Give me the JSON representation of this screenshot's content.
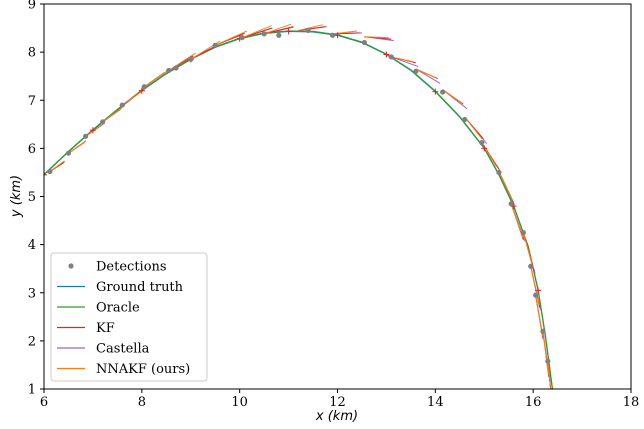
{
  "chart_data": {
    "type": "line",
    "xlabel": "x (km)",
    "ylabel": "y (km)",
    "xlim": [
      6,
      18
    ],
    "ylim": [
      1,
      9
    ],
    "xticks": [
      "6",
      "8",
      "10",
      "12",
      "14",
      "16",
      "18"
    ],
    "yticks": [
      "1",
      "2",
      "3",
      "4",
      "5",
      "6",
      "7",
      "8",
      "9"
    ],
    "grid": false,
    "legend_position": "lower-left",
    "colors": {
      "detections": "#808080",
      "ground_truth": "#1f77b4",
      "oracle": "#2ca02c",
      "kf": "#d62728",
      "castella": "#9467bd",
      "nnakf": "#ff7f0e"
    },
    "legend": [
      {
        "label": "Detections",
        "key": "detections",
        "kind": "marker"
      },
      {
        "label": "Ground truth",
        "key": "ground_truth",
        "kind": "line"
      },
      {
        "label": "Oracle",
        "key": "oracle",
        "kind": "line"
      },
      {
        "label": "KF",
        "key": "kf",
        "kind": "line"
      },
      {
        "label": "Castella",
        "key": "castella",
        "kind": "line"
      },
      {
        "label": "NNAKF (ours)",
        "key": "nnakf",
        "kind": "line"
      }
    ],
    "series": [
      {
        "name": "Ground truth",
        "key": "ground_truth",
        "x": [
          6.0,
          6.5,
          7.0,
          7.5,
          8.0,
          8.5,
          9.0,
          9.5,
          10.0,
          10.5,
          11.0,
          11.5,
          12.0,
          12.5,
          13.0,
          13.5,
          14.0,
          14.5,
          15.0,
          15.3,
          15.6,
          15.9,
          16.1,
          16.25,
          16.4
        ],
        "y": [
          5.45,
          5.93,
          6.38,
          6.8,
          7.2,
          7.55,
          7.85,
          8.1,
          8.28,
          8.39,
          8.43,
          8.42,
          8.35,
          8.2,
          7.95,
          7.62,
          7.18,
          6.65,
          6.0,
          5.45,
          4.8,
          3.95,
          3.05,
          2.1,
          0.95
        ]
      },
      {
        "name": "Oracle",
        "key": "oracle",
        "x": [
          6.0,
          6.5,
          7.0,
          7.5,
          8.0,
          8.5,
          9.0,
          9.5,
          10.0,
          10.5,
          11.0,
          11.5,
          12.0,
          12.5,
          13.0,
          13.5,
          14.0,
          14.5,
          15.0,
          15.3,
          15.6,
          15.9,
          16.1,
          16.25,
          16.4
        ],
        "y": [
          5.46,
          5.94,
          6.39,
          6.81,
          7.21,
          7.56,
          7.86,
          8.11,
          8.29,
          8.4,
          8.44,
          8.43,
          8.36,
          8.21,
          7.96,
          7.63,
          7.19,
          6.66,
          6.01,
          5.46,
          4.81,
          3.96,
          3.06,
          2.11,
          0.96
        ]
      }
    ],
    "detections": {
      "x": [
        6.12,
        6.5,
        6.85,
        7.2,
        7.6,
        8.05,
        8.55,
        8.7,
        9.0,
        9.5,
        10.05,
        10.5,
        10.8,
        11.4,
        11.9,
        12.55,
        13.1,
        13.6,
        14.15,
        14.6,
        14.95,
        15.3,
        15.55,
        15.8,
        15.95,
        16.05,
        16.2,
        16.3
      ],
      "y": [
        5.52,
        5.9,
        6.25,
        6.55,
        6.9,
        7.28,
        7.62,
        7.67,
        7.85,
        8.14,
        8.3,
        8.38,
        8.35,
        8.45,
        8.35,
        8.2,
        7.9,
        7.6,
        7.17,
        6.6,
        6.12,
        5.5,
        4.85,
        4.25,
        3.55,
        2.95,
        2.2,
        1.58
      ]
    },
    "predictions": {
      "x": [
        6.12,
        6.5,
        6.85,
        7.2,
        7.6,
        8.05,
        8.55,
        9.0,
        9.5,
        10.05,
        10.5,
        11.2,
        11.9,
        12.55,
        13.1,
        13.6,
        14.15,
        14.6,
        14.95,
        15.3,
        15.55,
        15.8,
        15.95,
        16.05,
        16.2,
        16.3
      ],
      "y": [
        5.52,
        5.9,
        6.25,
        6.55,
        6.9,
        7.28,
        7.62,
        7.85,
        8.14,
        8.3,
        8.38,
        8.45,
        8.38,
        8.32,
        7.9,
        7.65,
        7.22,
        6.65,
        6.12,
        5.52,
        4.85,
        4.25,
        3.55,
        2.95,
        2.2,
        1.58
      ],
      "kf": {
        "dx": [
          0.3,
          0.34,
          0.36,
          0.38,
          0.4,
          0.42,
          0.5,
          0.55,
          0.6,
          0.62,
          0.6,
          0.55,
          0.55,
          0.55,
          0.5,
          0.45,
          0.42,
          0.38,
          0.35,
          0.3,
          0.25,
          0.22,
          0.18,
          0.15,
          0.12,
          0.1
        ],
        "dy": [
          0.2,
          0.24,
          0.26,
          0.28,
          0.3,
          0.3,
          0.3,
          0.3,
          0.25,
          0.2,
          0.15,
          0.08,
          0.02,
          -0.05,
          -0.12,
          -0.2,
          -0.3,
          -0.45,
          -0.55,
          -0.65,
          -0.75,
          -0.8,
          -0.85,
          -0.9,
          -0.95,
          -1.0
        ]
      },
      "castella": {
        "dx": [
          0.28,
          0.32,
          0.34,
          0.36,
          0.38,
          0.4,
          0.48,
          0.52,
          0.58,
          0.6,
          0.6,
          0.58,
          0.6,
          0.6,
          0.55,
          0.5,
          0.5,
          0.45,
          0.38,
          0.32,
          0.28,
          0.24,
          0.2,
          0.16,
          0.13,
          0.1
        ],
        "dy": [
          0.18,
          0.22,
          0.24,
          0.26,
          0.28,
          0.28,
          0.28,
          0.28,
          0.24,
          0.2,
          0.14,
          0.08,
          0.02,
          -0.08,
          -0.2,
          -0.3,
          -0.4,
          -0.55,
          -0.6,
          -0.7,
          -0.78,
          -0.85,
          -0.9,
          -0.92,
          -0.95,
          -1.0
        ]
      },
      "nnakf": {
        "dx": [
          0.3,
          0.36,
          0.38,
          0.4,
          0.45,
          0.5,
          0.55,
          0.6,
          0.65,
          0.6,
          0.55,
          0.5,
          0.5,
          0.5,
          0.45,
          0.4,
          0.4,
          0.35,
          0.3,
          0.28,
          0.24,
          0.2,
          0.17,
          0.14,
          0.11,
          0.09
        ],
        "dy": [
          0.22,
          0.26,
          0.28,
          0.3,
          0.32,
          0.35,
          0.36,
          0.38,
          0.3,
          0.25,
          0.2,
          0.12,
          0.06,
          -0.02,
          -0.1,
          -0.18,
          -0.28,
          -0.45,
          -0.5,
          -0.6,
          -0.7,
          -0.75,
          -0.8,
          -0.85,
          -0.9,
          -0.95
        ]
      }
    }
  }
}
